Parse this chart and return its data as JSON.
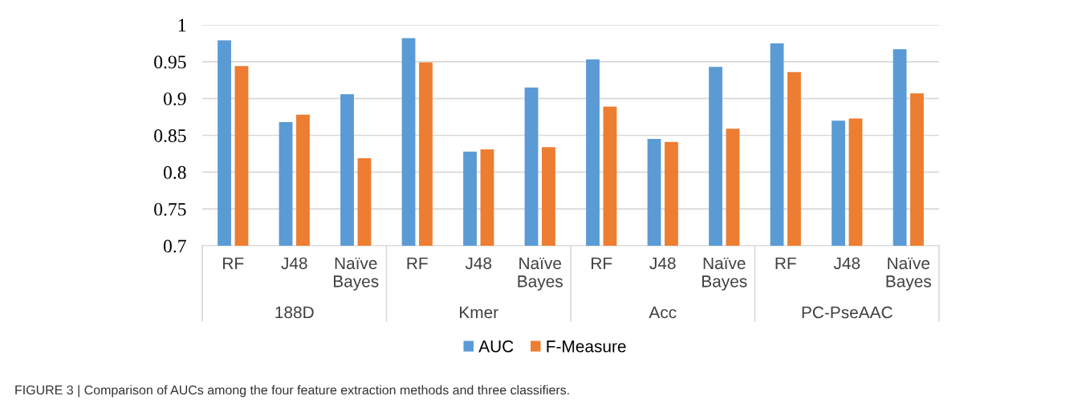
{
  "chart_data": {
    "type": "bar",
    "categories": [
      "RF",
      "J48",
      "Naïve\nBayes",
      "RF",
      "J48",
      "Naïve\nBayes",
      "RF",
      "J48",
      "Naïve\nBayes",
      "RF",
      "J48",
      "Naïve\nBayes"
    ],
    "series": [
      {
        "name": "AUC",
        "color": "#5b9bd5",
        "values": [
          0.979,
          0.868,
          0.906,
          0.982,
          0.828,
          0.915,
          0.953,
          0.845,
          0.943,
          0.975,
          0.87,
          0.967
        ]
      },
      {
        "name": "F-Measure",
        "color": "#ed7d31",
        "values": [
          0.944,
          0.878,
          0.819,
          0.949,
          0.831,
          0.834,
          0.889,
          0.841,
          0.859,
          0.936,
          0.873,
          0.907
        ]
      }
    ],
    "ylim": [
      0.7,
      1
    ],
    "yticks": [
      0.7,
      0.75,
      0.8,
      0.85,
      0.9,
      0.95,
      1
    ],
    "grid": "y",
    "legend": "bottom",
    "annotations": [
      "188D",
      "Kmer",
      "Acc",
      "PC-PseAAC",
      "FIGURE 3 | Comparison of AUCs among the four feature extraction methods and three classifiers."
    ]
  }
}
